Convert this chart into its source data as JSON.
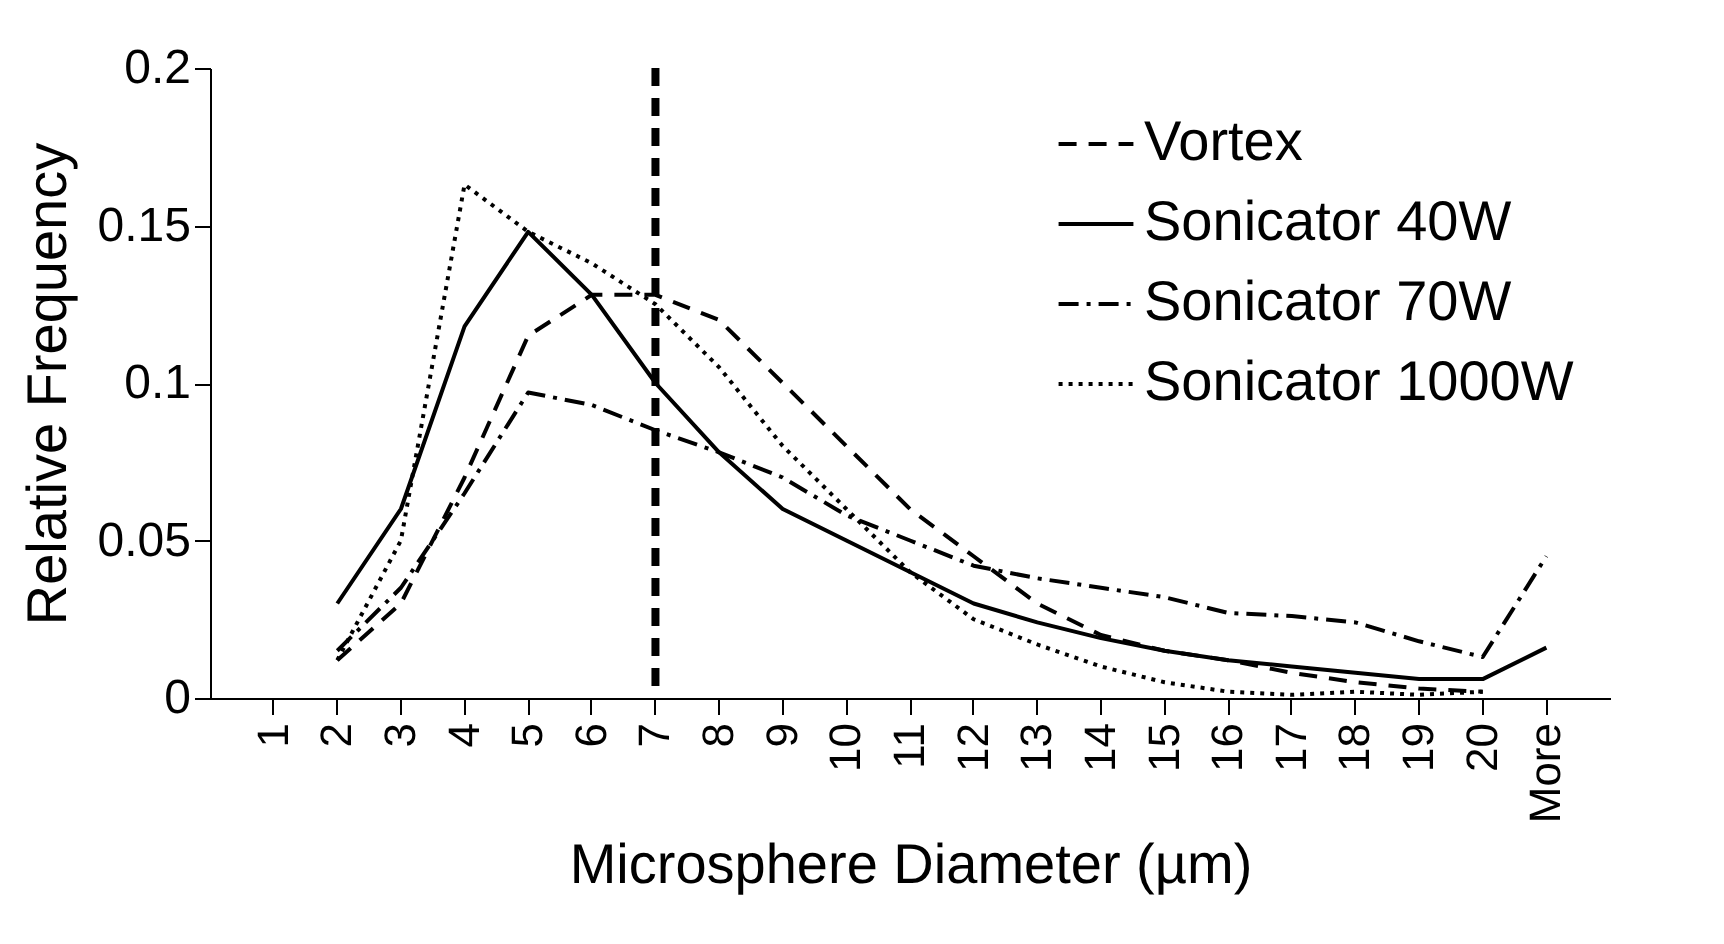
{
  "chart_data": {
    "type": "line",
    "xlabel": "Microsphere Diameter (µm)",
    "ylabel": "Relative Frequency",
    "categories": [
      "1",
      "2",
      "3",
      "4",
      "5",
      "6",
      "7",
      "8",
      "9",
      "10",
      "11",
      "12",
      "13",
      "14",
      "15",
      "16",
      "17",
      "18",
      "19",
      "20",
      "More"
    ],
    "series": [
      {
        "name": "Vortex",
        "color": "#000000",
        "line_style": "dashed",
        "values": [
          null,
          0.012,
          0.03,
          0.07,
          0.115,
          0.128,
          0.128,
          0.12,
          0.1,
          0.08,
          0.06,
          0.045,
          0.03,
          0.02,
          0.015,
          0.012,
          0.008,
          0.005,
          0.003,
          0.002,
          null
        ]
      },
      {
        "name": "Sonicator 40W",
        "color": "#000000",
        "line_style": "solid",
        "values": [
          null,
          0.03,
          0.06,
          0.118,
          0.148,
          0.128,
          0.1,
          0.078,
          0.06,
          0.05,
          0.04,
          0.03,
          0.024,
          0.019,
          0.015,
          0.012,
          0.01,
          0.008,
          0.006,
          0.006,
          0.016
        ]
      },
      {
        "name": "Sonicator 70W",
        "color": "#000000",
        "line_style": "dashdot",
        "values": [
          null,
          0.015,
          0.035,
          0.065,
          0.097,
          0.093,
          0.085,
          0.078,
          0.07,
          0.058,
          0.05,
          0.042,
          0.038,
          0.035,
          0.032,
          0.027,
          0.026,
          0.024,
          0.018,
          0.013,
          0.045
        ]
      },
      {
        "name": "Sonicator 1000W",
        "color": "#000000",
        "line_style": "dotted",
        "values": [
          null,
          0.012,
          0.05,
          0.163,
          0.148,
          0.138,
          0.125,
          0.105,
          0.08,
          0.06,
          0.04,
          0.025,
          0.017,
          0.01,
          0.005,
          0.002,
          0.001,
          0.002,
          0.001,
          0.002,
          null
        ]
      }
    ],
    "ylim": [
      0,
      0.2
    ],
    "yticks": [
      0,
      0.05,
      0.1,
      0.15,
      0.2
    ],
    "grid": false,
    "legend": "top right",
    "ref_lines": [
      {
        "axis": "x",
        "value": "7",
        "color": "#000000",
        "line_style": "dashed"
      }
    ]
  }
}
